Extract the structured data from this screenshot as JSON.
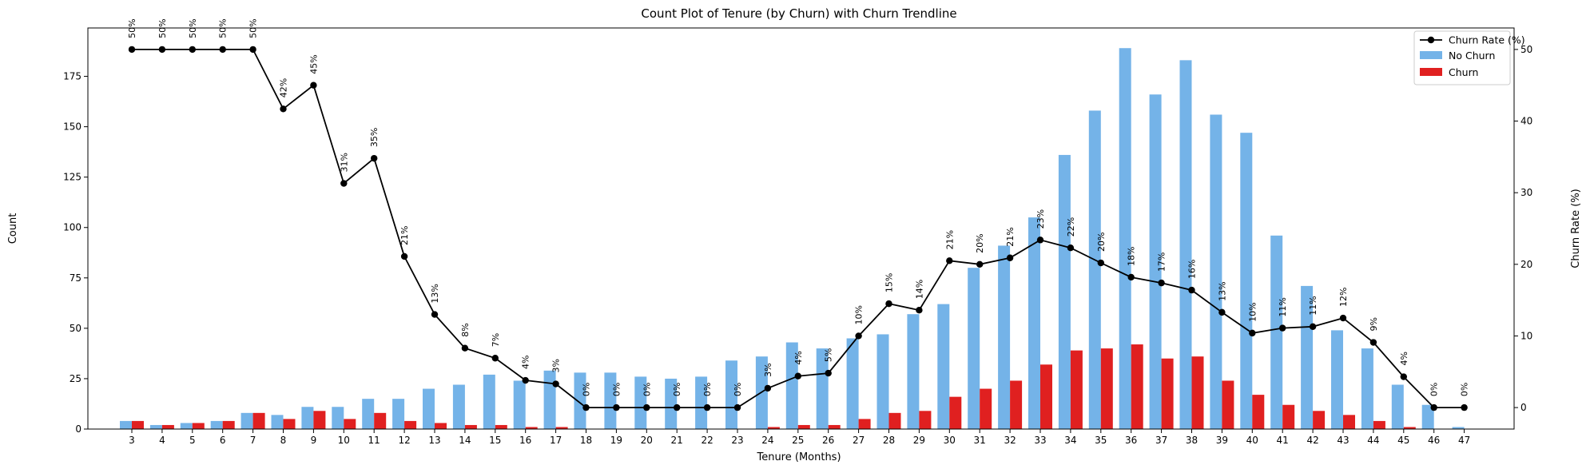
{
  "chart_data": {
    "type": "bar",
    "title": "Count Plot of Tenure (by Churn) with Churn Trendline",
    "xlabel": "Tenure (Months)",
    "ylabel": "Count",
    "y2label": "Churn Rate (%)",
    "ylim": [
      0,
      199
    ],
    "y2lim": [
      -3,
      53
    ],
    "yticks": [
      0,
      25,
      50,
      75,
      100,
      125,
      150,
      175
    ],
    "y2ticks": [
      0,
      10,
      20,
      30,
      40,
      50
    ],
    "grid": false,
    "legend_position": "top-right",
    "categories": [
      "3",
      "4",
      "5",
      "6",
      "7",
      "8",
      "9",
      "10",
      "11",
      "12",
      "13",
      "14",
      "15",
      "16",
      "17",
      "18",
      "19",
      "20",
      "21",
      "22",
      "23",
      "24",
      "25",
      "26",
      "27",
      "28",
      "29",
      "30",
      "31",
      "32",
      "33",
      "34",
      "35",
      "36",
      "37",
      "38",
      "39",
      "40",
      "41",
      "42",
      "43",
      "44",
      "45",
      "46",
      "47"
    ],
    "series": [
      {
        "name": "No Churn",
        "color": "#74b3e8",
        "values": [
          4,
          2,
          3,
          4,
          8,
          7,
          11,
          11,
          15,
          15,
          20,
          22,
          27,
          24,
          29,
          28,
          28,
          26,
          25,
          26,
          34,
          36,
          43,
          40,
          45,
          47,
          57,
          62,
          80,
          91,
          105,
          136,
          158,
          189,
          166,
          183,
          156,
          147,
          96,
          71,
          49,
          40,
          22,
          12,
          1
        ]
      },
      {
        "name": "Churn",
        "color": "#e02020",
        "values": [
          4,
          2,
          3,
          4,
          8,
          5,
          9,
          5,
          8,
          4,
          3,
          2,
          2,
          1,
          1,
          0,
          0,
          0,
          0,
          0,
          0,
          1,
          2,
          2,
          5,
          8,
          9,
          16,
          20,
          24,
          32,
          39,
          40,
          42,
          35,
          36,
          24,
          17,
          12,
          9,
          7,
          4,
          1,
          0,
          0
        ]
      },
      {
        "name": "Churn Rate (%)",
        "type": "line",
        "color": "#000000",
        "values": [
          50,
          50,
          50,
          50,
          50,
          42,
          45,
          31,
          35,
          21,
          13,
          8,
          7,
          4,
          3,
          0,
          0,
          0,
          0,
          0,
          0,
          3,
          4,
          5,
          10,
          15,
          14,
          21,
          20,
          21,
          23,
          22,
          20,
          18,
          17,
          16,
          13,
          10,
          11,
          11,
          12,
          9,
          4,
          0,
          0
        ],
        "points": [
          50,
          50,
          50,
          50,
          50,
          41.7,
          45,
          31.3,
          34.8,
          21.1,
          13,
          8.3,
          6.9,
          3.8,
          3.3,
          0,
          0,
          0,
          0,
          0,
          0,
          2.7,
          4.4,
          4.8,
          10,
          14.5,
          13.6,
          20.5,
          20,
          20.9,
          23.4,
          22.3,
          20.2,
          18.2,
          17.4,
          16.4,
          13.3,
          10.4,
          11.1,
          11.3,
          12.5,
          9.1,
          4.3,
          0,
          0
        ],
        "labels": [
          "50%",
          "50%",
          "50%",
          "50%",
          "50%",
          "42%",
          "45%",
          "31%",
          "35%",
          "21%",
          "13%",
          "8%",
          "7%",
          "4%",
          "3%",
          "0%",
          "0%",
          "0%",
          "0%",
          "0%",
          "0%",
          "3%",
          "4%",
          "5%",
          "10%",
          "15%",
          "14%",
          "21%",
          "20%",
          "21%",
          "23%",
          "22%",
          "20%",
          "18%",
          "17%",
          "16%",
          "13%",
          "10%",
          "11%",
          "11%",
          "12%",
          "9%",
          "4%",
          "0%",
          "0%"
        ]
      }
    ]
  }
}
